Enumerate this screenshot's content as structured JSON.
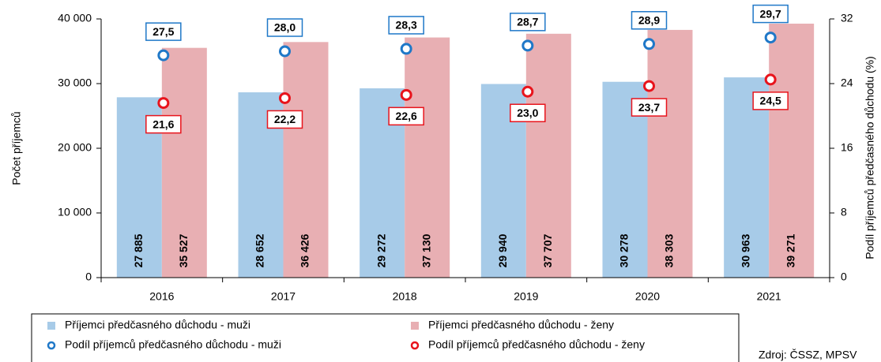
{
  "chart_data": {
    "type": "bar",
    "categories": [
      "2016",
      "2017",
      "2018",
      "2019",
      "2020",
      "2021"
    ],
    "y_label": "Počet příjemců",
    "y2_label": "Podíl příjemců předčasného důchodu (%)",
    "ylim": [
      0,
      40000
    ],
    "yticks": [
      0,
      {
        "value": 10000,
        "label": "10 000"
      },
      {
        "value": 20000,
        "label": "20 000"
      },
      {
        "value": 30000,
        "label": "30 000"
      },
      {
        "value": 40000,
        "label": "40 000"
      }
    ],
    "y2lim": [
      0,
      32
    ],
    "y2ticks": [
      0,
      8,
      16,
      24,
      32
    ],
    "series": [
      {
        "name": "Příjemci předčasného důchodu - muži",
        "type": "bar",
        "color": "#a7cbe8",
        "values": [
          27885,
          28652,
          29272,
          29940,
          30278,
          30963
        ],
        "value_labels": [
          "27 885",
          "28 652",
          "29 272",
          "29 940",
          "30 278",
          "30 963"
        ]
      },
      {
        "name": "Příjemci předčasného důchodu - ženy",
        "type": "bar",
        "color": "#e8afb3",
        "values": [
          35527,
          36426,
          37130,
          37707,
          38303,
          39271
        ],
        "value_labels": [
          "35 527",
          "36 426",
          "37 130",
          "37 707",
          "38 303",
          "39 271"
        ]
      },
      {
        "name": "Podíl příjemců předčasného důchodu - muži",
        "type": "scatter",
        "axis": "y2",
        "color": "#1f78c8",
        "values": [
          27.5,
          28.0,
          28.3,
          28.7,
          28.9,
          29.7
        ],
        "value_labels": [
          "27,5",
          "28,0",
          "28,3",
          "28,7",
          "28,9",
          "29,7"
        ]
      },
      {
        "name": "Podíl příjemců předčasného důchodu - ženy",
        "type": "scatter",
        "axis": "y2",
        "color": "#e8141c",
        "values": [
          21.6,
          22.2,
          22.6,
          23.0,
          23.7,
          24.5
        ],
        "value_labels": [
          "21,6",
          "22,2",
          "22,6",
          "23,0",
          "23,7",
          "24,5"
        ]
      }
    ],
    "source": "Zdroj: ČSSZ, MPSV"
  }
}
